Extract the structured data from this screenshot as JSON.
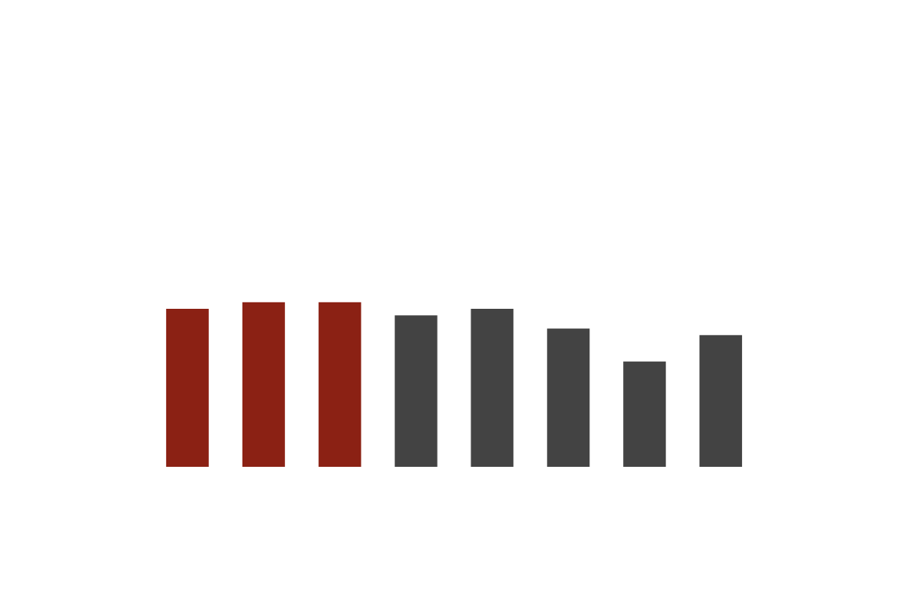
{
  "chart_data": {
    "type": "bar",
    "title": "",
    "xlabel": "",
    "ylabel": "",
    "categories": [
      "",
      "",
      "",
      "",
      "",
      "",
      "",
      ""
    ],
    "values": [
      24,
      25,
      25,
      23,
      24,
      21,
      16,
      20
    ],
    "ylim": [
      0,
      72
    ],
    "grid": false,
    "legend": "none",
    "colors": {
      "highlight": "#8b2114",
      "default": "#434343"
    },
    "highlight_indices": [
      0,
      1,
      2
    ]
  }
}
